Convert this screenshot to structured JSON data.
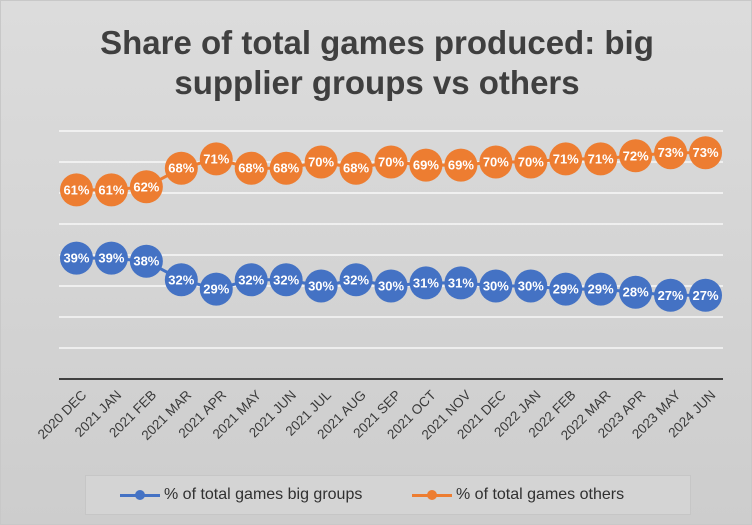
{
  "chart_data": {
    "type": "line",
    "title": "Share of total games produced: big supplier groups vs others",
    "title_lines": [
      "Share of total games produced: big",
      "supplier groups vs others"
    ],
    "categories": [
      "2020 DEC",
      "2021 JAN",
      "2021 FEB",
      "2021 MAR",
      "2021 APR",
      "2021 MAY",
      "2021 JUN",
      "2021 JUL",
      "2021 AUG",
      "2021 SEP",
      "2021 OCT",
      "2021 NOV",
      "2021 DEC",
      "2022 JAN",
      "2022 FEB",
      "2022 MAR",
      "2023 APR",
      "2023 MAY",
      "2024 JUN"
    ],
    "series": [
      {
        "name": "% of total games big groups",
        "color": "#4472C4",
        "values": [
          39,
          39,
          38,
          32,
          29,
          32,
          32,
          30,
          32,
          30,
          31,
          31,
          30,
          30,
          29,
          29,
          28,
          27,
          27
        ],
        "labels": [
          "39%",
          "39%",
          "38%",
          "32%",
          "29%",
          "32%",
          "32%",
          "30%",
          "32%",
          "30%",
          "31%",
          "31%",
          "30%",
          "30%",
          "29%",
          "29%",
          "28%",
          "27%",
          "27%"
        ]
      },
      {
        "name": "% of total games others",
        "color": "#ED7D31",
        "values": [
          61,
          61,
          62,
          68,
          71,
          68,
          68,
          70,
          68,
          70,
          69,
          69,
          70,
          70,
          71,
          71,
          72,
          73,
          73
        ],
        "labels": [
          "61%",
          "61%",
          "62%",
          "68%",
          "71%",
          "68%",
          "68%",
          "70%",
          "68%",
          "70%",
          "69%",
          "69%",
          "70%",
          "70%",
          "71%",
          "71%",
          "72%",
          "73%",
          "73%"
        ]
      }
    ],
    "ylim": [
      0,
      80
    ],
    "grid": true,
    "legend": "bottom",
    "gridline_color": "#ffffff",
    "axis_color": "#404040",
    "label_color": "#ffffff"
  }
}
